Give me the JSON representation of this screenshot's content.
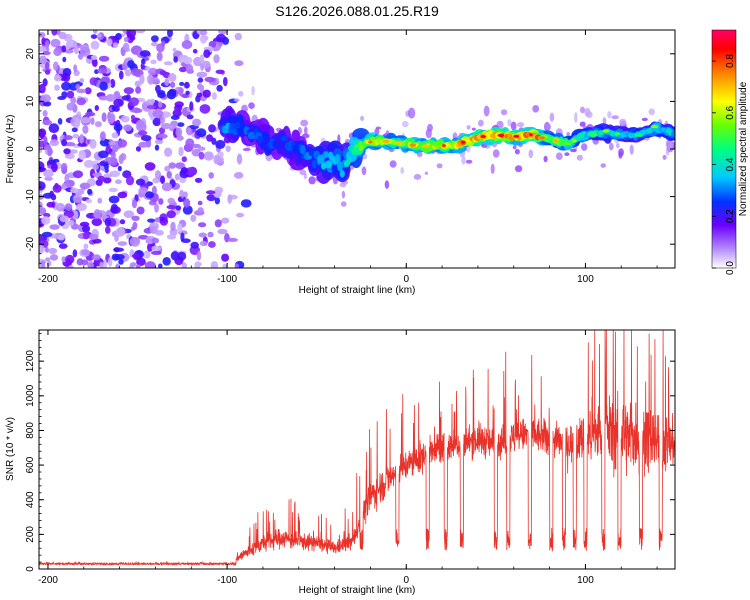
{
  "title": "S126.2026.088.01.25.R19",
  "chart_data": [
    {
      "type": "heatmap",
      "xlabel": "Height of straight line (km)",
      "ylabel": "Frequency (Hz)",
      "xlim": [
        -205,
        150
      ],
      "ylim": [
        -25,
        25
      ],
      "xticks": [
        "-200",
        "-100",
        "0",
        "100"
      ],
      "xtick_values": [
        -200,
        -100,
        0,
        100
      ],
      "yticks": [
        "-20",
        "-10",
        "0",
        "10",
        "20"
      ],
      "ytick_values": [
        -20,
        -10,
        0,
        10,
        20
      ],
      "colorbar": {
        "label": "Normalized spectral amplitude",
        "range": [
          0,
          0.92
        ],
        "ticks": [
          "0.0",
          "0.2",
          "0.4",
          "0.6",
          "0.8"
        ],
        "tick_values": [
          0.0,
          0.2,
          0.4,
          0.6,
          0.8
        ]
      },
      "ridge": {
        "x": [
          -100,
          -90,
          -80,
          -70,
          -60,
          -50,
          -45,
          -40,
          -35,
          -30,
          -20,
          -10,
          0,
          10,
          20,
          30,
          40,
          50,
          60,
          70,
          80,
          90,
          100,
          110,
          120,
          130,
          140,
          150
        ],
        "freq": [
          5,
          4,
          2,
          1,
          0,
          -2,
          -3,
          -2,
          -4,
          0,
          1.5,
          1.5,
          1,
          0.5,
          0.5,
          1,
          2.5,
          3,
          2.5,
          3,
          2,
          1,
          3,
          3.5,
          3,
          3,
          4.5,
          3
        ],
        "amplitude": [
          0.35,
          0.3,
          0.3,
          0.28,
          0.3,
          0.35,
          0.4,
          0.4,
          0.35,
          0.5,
          0.7,
          0.65,
          0.6,
          0.65,
          0.7,
          0.75,
          0.8,
          0.78,
          0.75,
          0.85,
          0.6,
          0.55,
          0.45,
          0.45,
          0.4,
          0.4,
          0.45,
          0.4
        ]
      },
      "noise_region": {
        "x_range": [
          -205,
          -95
        ],
        "freq_range": [
          -25,
          25
        ],
        "amplitude_range": [
          0.05,
          0.25
        ]
      }
    },
    {
      "type": "line",
      "xlabel": "Height of straight line (km)",
      "ylabel": "SNR (10 * v/v)",
      "xlim": [
        -205,
        150
      ],
      "ylim": [
        0,
        1380
      ],
      "xticks": [
        "-200",
        "-100",
        "0",
        "100"
      ],
      "xtick_values": [
        -200,
        -100,
        0,
        100
      ],
      "yticks": [
        "0",
        "200",
        "400",
        "600",
        "800",
        "1000",
        "1200"
      ],
      "ytick_values": [
        0,
        200,
        400,
        600,
        800,
        1000,
        1200
      ],
      "color": "#e8322a",
      "series": [
        {
          "name": "SNR",
          "x": [
            -205,
            -100,
            -90,
            -80,
            -70,
            -60,
            -50,
            -40,
            -30,
            -20,
            -10,
            0,
            10,
            20,
            30,
            40,
            50,
            60,
            70,
            80,
            90,
            100,
            110,
            120,
            130,
            140,
            150
          ],
          "mean": [
            30,
            30,
            90,
            150,
            180,
            160,
            150,
            120,
            160,
            420,
            520,
            600,
            650,
            700,
            720,
            750,
            720,
            760,
            780,
            750,
            720,
            760,
            800,
            780,
            760,
            740,
            720
          ],
          "spread": [
            15,
            15,
            60,
            80,
            90,
            80,
            70,
            60,
            80,
            150,
            150,
            140,
            140,
            140,
            140,
            150,
            150,
            150,
            160,
            170,
            170,
            220,
            300,
            350,
            300,
            280,
            220
          ],
          "dips": [
            -25,
            -5,
            12,
            22,
            31,
            50,
            57,
            69,
            81,
            88,
            94,
            100,
            110,
            119,
            131,
            142
          ],
          "dip_level": 170
        }
      ]
    }
  ]
}
